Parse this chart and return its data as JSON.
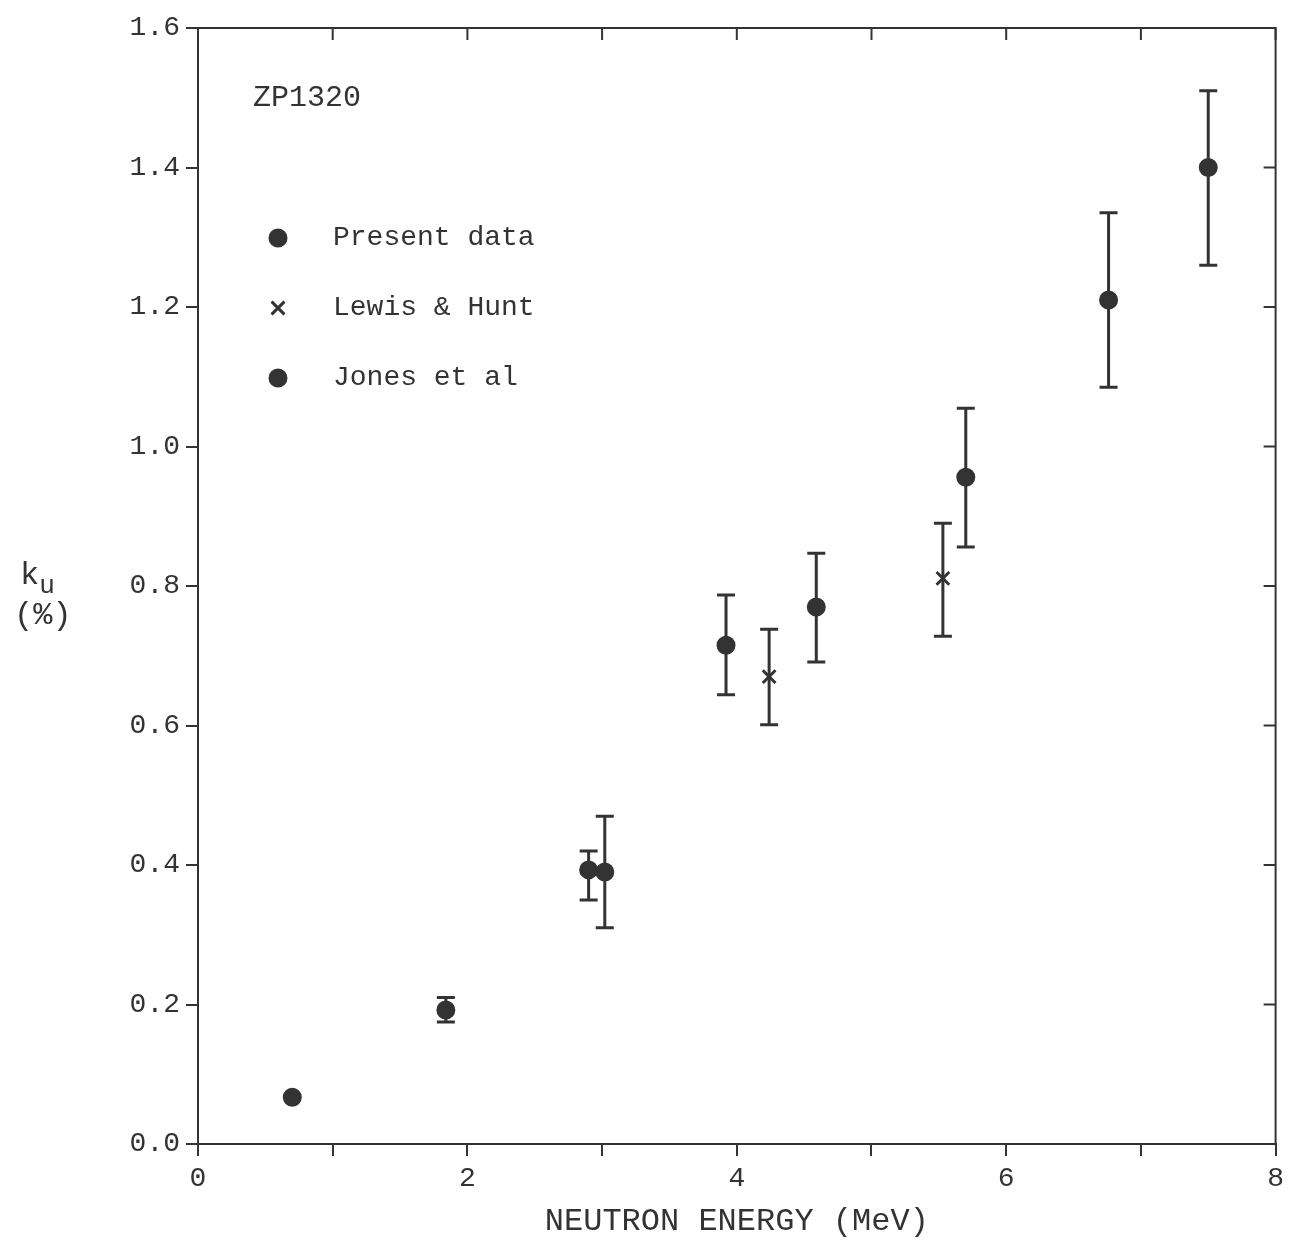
{
  "chart_data": {
    "type": "scatter",
    "xlabel": "NEUTRON ENERGY (MeV)",
    "ylabel": "k$_{u}$ (%)",
    "annotations": [
      "ZP1320"
    ],
    "xlim": [
      0,
      8
    ],
    "xticks": [
      0,
      {
        "value": 1,
        "label": null
      },
      2,
      {
        "value": 3,
        "label": null
      },
      4,
      {
        "value": 5,
        "label": null
      },
      6,
      {
        "value": 7,
        "label": null
      },
      8
    ],
    "ylim": [
      0,
      1.6
    ],
    "yticks": [
      {
        "value": 0,
        "label": "0.0"
      },
      0.2,
      0.4,
      0.6,
      0.8,
      {
        "value": 1,
        "label": "1.0"
      },
      1.2,
      1.4,
      1.6
    ],
    "grid": false,
    "legend": "top left",
    "series": [
      {
        "name": "Present data",
        "color": "#333333",
        "marker": "circle",
        "x": [
          0.7,
          1.84,
          2.9,
          3.92,
          4.59,
          5.7,
          6.76,
          7.5
        ],
        "values": [
          0.067,
          0.192,
          0.393,
          0.715,
          0.77,
          0.956,
          1.21,
          1.4
        ],
        "errors": [
          null,
          [
            0.175,
            0.21
          ],
          [
            0.35,
            0.42
          ],
          [
            0.644,
            0.787
          ],
          [
            0.691,
            0.847
          ],
          [
            0.856,
            1.055
          ],
          [
            1.085,
            1.335
          ],
          [
            1.26,
            1.51
          ]
        ]
      },
      {
        "name": "Lewis & Hunt",
        "color": "#333333",
        "marker": "cross",
        "x": [
          4.24,
          5.53
        ],
        "values": [
          0.67,
          0.811
        ],
        "errors": [
          [
            0.601,
            0.738
          ],
          [
            0.728,
            0.89
          ]
        ]
      },
      {
        "name": "Jones et al",
        "color": "#333333",
        "marker": "circle",
        "x": [
          3.02
        ],
        "values": [
          0.39
        ],
        "errors": [
          [
            0.31,
            0.47
          ]
        ]
      }
    ]
  }
}
